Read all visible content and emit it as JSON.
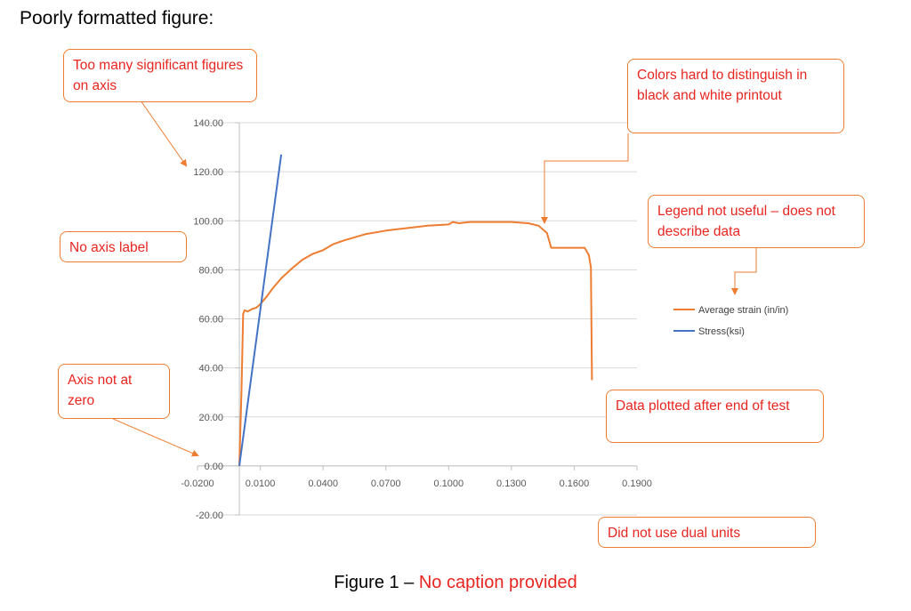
{
  "heading": "Poorly formatted figure:",
  "callouts": {
    "sig_figs": "Too many significant figures on axis",
    "colors": "Colors hard to distinguish in black and white printout",
    "no_axis_label": "No axis label",
    "legend": "Legend not useful – does not describe data",
    "axis_zero": "Axis not at zero",
    "after_end": "Data plotted after end of test",
    "dual_units": "Did not use dual units"
  },
  "caption": {
    "prefix": "Figure 1 – ",
    "text": "No caption provided"
  },
  "colors": {
    "callout_border": "#ed7d31",
    "callout_text": "#e8251f",
    "series_strain": "#ed7d31",
    "series_stress": "#4472c4",
    "gridline": "#d9d9d9"
  },
  "chart_data": {
    "type": "scatter",
    "xlim": [
      -0.02,
      0.19
    ],
    "ylim": [
      -20,
      140
    ],
    "x_ticks": [
      "-0.0200",
      "0.0100",
      "0.0400",
      "0.0700",
      "0.1000",
      "0.1300",
      "0.1600",
      "0.1900"
    ],
    "x_tick_values": [
      -0.02,
      0.01,
      0.04,
      0.07,
      0.1,
      0.13,
      0.16,
      0.19
    ],
    "y_ticks": [
      "-20.00",
      "0.00",
      "20.00",
      "40.00",
      "60.00",
      "80.00",
      "100.00",
      "120.00",
      "140.00"
    ],
    "y_tick_values": [
      -20,
      0,
      20,
      40,
      60,
      80,
      100,
      120,
      140
    ],
    "grid": true,
    "legend_position": "right",
    "series": [
      {
        "name": "Average strain (in/in)",
        "color": "#ed7d31",
        "x": [
          0.0,
          0.001,
          0.0018,
          0.0025,
          0.004,
          0.006,
          0.008,
          0.01,
          0.013,
          0.016,
          0.02,
          0.025,
          0.03,
          0.035,
          0.04,
          0.045,
          0.05,
          0.06,
          0.07,
          0.08,
          0.09,
          0.1,
          0.102,
          0.105,
          0.11,
          0.12,
          0.13,
          0.138,
          0.143,
          0.147,
          0.149,
          0.15,
          0.155,
          0.16,
          0.165,
          0.167,
          0.168,
          0.1685
        ],
        "y": [
          0.0,
          30.0,
          62.0,
          63.5,
          63.0,
          64.0,
          64.5,
          66.0,
          69.0,
          72.5,
          76.5,
          80.5,
          84.0,
          86.5,
          88.0,
          90.5,
          92.0,
          94.5,
          96.0,
          97.0,
          98.0,
          98.5,
          99.5,
          99.0,
          99.5,
          99.5,
          99.5,
          99.0,
          98.0,
          95.0,
          89.0,
          89.0,
          89.0,
          89.0,
          89.0,
          86.0,
          81.0,
          35.0
        ]
      },
      {
        "name": "Stress(ksi)",
        "color": "#4472c4",
        "x": [
          0.0,
          0.02
        ],
        "y": [
          0.0,
          127.0
        ]
      }
    ]
  }
}
